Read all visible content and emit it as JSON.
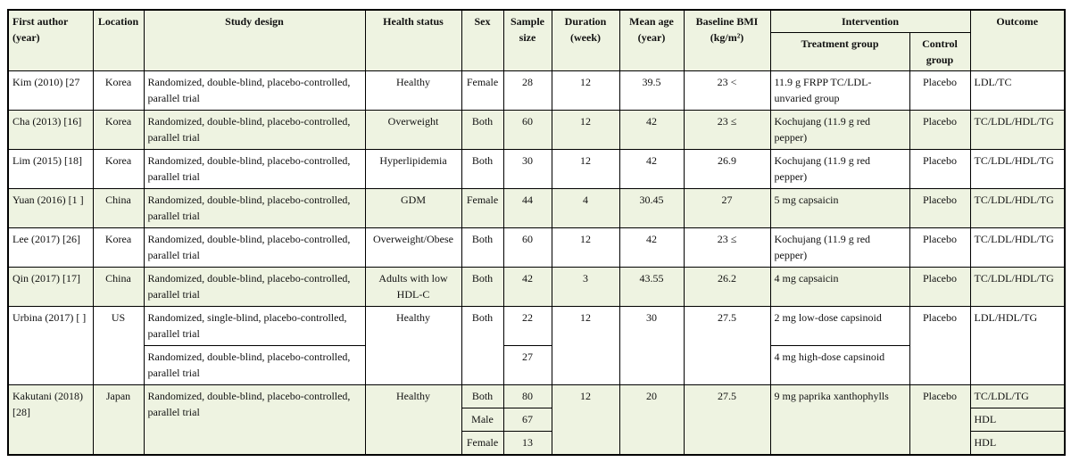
{
  "table": {
    "columns": [
      "First author (year)",
      "Location",
      "Study design",
      "Health status",
      "Sex",
      "Sample size",
      "Duration (week)",
      "Mean age (year)",
      "Baseline BMI (kg/m²)",
      "Intervention",
      "Outcome"
    ],
    "subcolumns": [
      "Treatment group",
      "Control group"
    ],
    "rows": [
      {
        "author": "Kim (2010) [27",
        "location": "Korea",
        "design": "Randomized, double-blind, placebo-controlled, parallel trial",
        "health": "Healthy",
        "sex": "Female",
        "sample": 28,
        "duration": 12,
        "age": 39.5,
        "bmi": "23 <",
        "treatment": "11.9 g FRPP TC/LDL-unvaried group",
        "control": "Placebo",
        "outcome": "LDL/TC"
      },
      {
        "author": "Cha (2013) [16]",
        "location": "Korea",
        "design": "Randomized, double-blind, placebo-controlled, parallel trial",
        "health": "Overweight",
        "sex": "Both",
        "sample": 60,
        "duration": 12,
        "age": 42,
        "bmi": "23 ≤",
        "treatment": "Kochujang (11.9 g red pepper)",
        "control": "Placebo",
        "outcome": "TC/LDL/HDL/TG"
      },
      {
        "author": "Lim (2015) [18]",
        "location": "Korea",
        "design": "Randomized, double-blind, placebo-controlled, parallel trial",
        "health": "Hyperlipidemia",
        "sex": "Both",
        "sample": 30,
        "duration": 12,
        "age": 42,
        "bmi": 26.9,
        "treatment": "Kochujang (11.9 g red pepper)",
        "control": "Placebo",
        "outcome": "TC/LDL/HDL/TG"
      },
      {
        "author": "Yuan (2016) [1 ]",
        "location": "China",
        "design": "Randomized, double-blind, placebo-controlled, parallel trial",
        "health": "GDM",
        "sex": "Female",
        "sample": 44,
        "duration": 4,
        "age": 30.45,
        "bmi": 27,
        "treatment": "5 mg capsaicin",
        "control": "Placebo",
        "outcome": "TC/LDL/HDL/TG"
      },
      {
        "author": "Lee (2017) [26]",
        "location": "Korea",
        "design": "Randomized, double-blind, placebo-controlled, parallel trial",
        "health": "Overweight/Obese",
        "sex": "Both",
        "sample": 60,
        "duration": 12,
        "age": 42,
        "bmi": "23 ≤",
        "treatment": "Kochujang (11.9 g red pepper)",
        "control": "Placebo",
        "outcome": "TC/LDL/HDL/TG"
      },
      {
        "author": "Qin (2017) [17]",
        "location": "China",
        "design": "Randomized, double-blind, placebo-controlled, parallel trial",
        "health": "Adults with low HDL-C",
        "sex": "Both",
        "sample": 42,
        "duration": 3,
        "age": 43.55,
        "bmi": 26.2,
        "treatment": "4 mg capsaicin",
        "control": "Placebo",
        "outcome": "TC/LDL/HDL/TG"
      },
      {
        "author": "Urbina (2017) [ ]",
        "location": "US",
        "design": "Randomized, single-blind, placebo-controlled, parallel trial",
        "health": "Healthy",
        "sex": "Both",
        "sample": 22,
        "duration": 12,
        "age": 30,
        "bmi": 27.5,
        "treatment": "2 mg low-dose capsinoid",
        "control": "Placebo",
        "outcome": "LDL/HDL/TG"
      },
      {
        "design": "Randomized, double-blind, placebo-controlled, parallel trial",
        "sample": 27,
        "treatment": "4 mg high-dose capsinoid"
      },
      {
        "author": "Kakutani (2018) [28]",
        "location": "Japan",
        "design": "Randomized, double-blind, placebo-controlled, parallel trial",
        "health": "Healthy",
        "sex": "Both",
        "sample": 80,
        "duration": 12,
        "age": 20,
        "bmi": 27.5,
        "treatment": "9 mg paprika xanthophylls",
        "control": "Placebo",
        "outcome": "TC/LDL/TG"
      },
      {
        "sex": "Male",
        "sample": 67,
        "outcome": "HDL"
      },
      {
        "sex": "Female",
        "sample": 13,
        "outcome": "HDL"
      }
    ]
  }
}
